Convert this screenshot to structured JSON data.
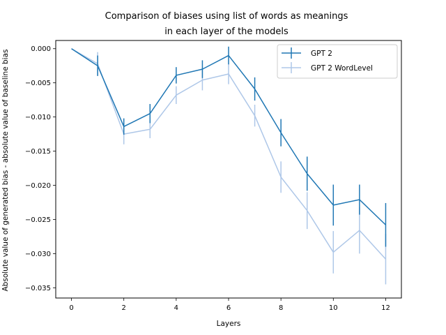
{
  "chart_data": {
    "type": "line",
    "title_lines": [
      "Comparison of biases using list of words as meanings",
      "in each layer of the models"
    ],
    "xlabel": "Layers",
    "ylabel": "Absolute value of generated bias - absolute value of baseline bias",
    "xlim": [
      -0.6,
      12.6
    ],
    "ylim": [
      -0.0365,
      0.0012
    ],
    "xticks": [
      0,
      2,
      4,
      6,
      8,
      10,
      12
    ],
    "yticks": [
      0.0,
      -0.005,
      -0.01,
      -0.015,
      -0.02,
      -0.025,
      -0.03,
      -0.035
    ],
    "ytick_labels": [
      "0.000",
      "−0.005",
      "−0.010",
      "−0.015",
      "−0.020",
      "−0.025",
      "−0.030",
      "−0.035"
    ],
    "grid": false,
    "legend_position": "top-right",
    "x": [
      0,
      1,
      2,
      3,
      4,
      5,
      6,
      7,
      8,
      9,
      10,
      11,
      12
    ],
    "series": [
      {
        "name": "GPT 2",
        "color": "#1f77b4",
        "values": [
          0.0,
          -0.0025,
          -0.0114,
          -0.0095,
          -0.0039,
          -0.003,
          -0.001,
          -0.0059,
          -0.0123,
          -0.0183,
          -0.0229,
          -0.0221,
          -0.0258
        ],
        "errors": [
          0.0,
          0.0015,
          0.0012,
          0.0014,
          0.0012,
          0.0013,
          0.0013,
          0.0017,
          0.002,
          0.0025,
          0.003,
          0.0022,
          0.0032
        ]
      },
      {
        "name": "GPT 2 WordLevel",
        "color": "#aec7e8",
        "values": [
          0.0,
          -0.0022,
          -0.0125,
          -0.0118,
          -0.0068,
          -0.0046,
          -0.0037,
          -0.0098,
          -0.0188,
          -0.0237,
          -0.0298,
          -0.0266,
          -0.0308
        ],
        "errors": [
          0.0,
          0.0017,
          0.0015,
          0.0013,
          0.0013,
          0.0015,
          0.0015,
          0.0016,
          0.0023,
          0.0027,
          0.0031,
          0.0034,
          0.0037
        ]
      }
    ]
  }
}
